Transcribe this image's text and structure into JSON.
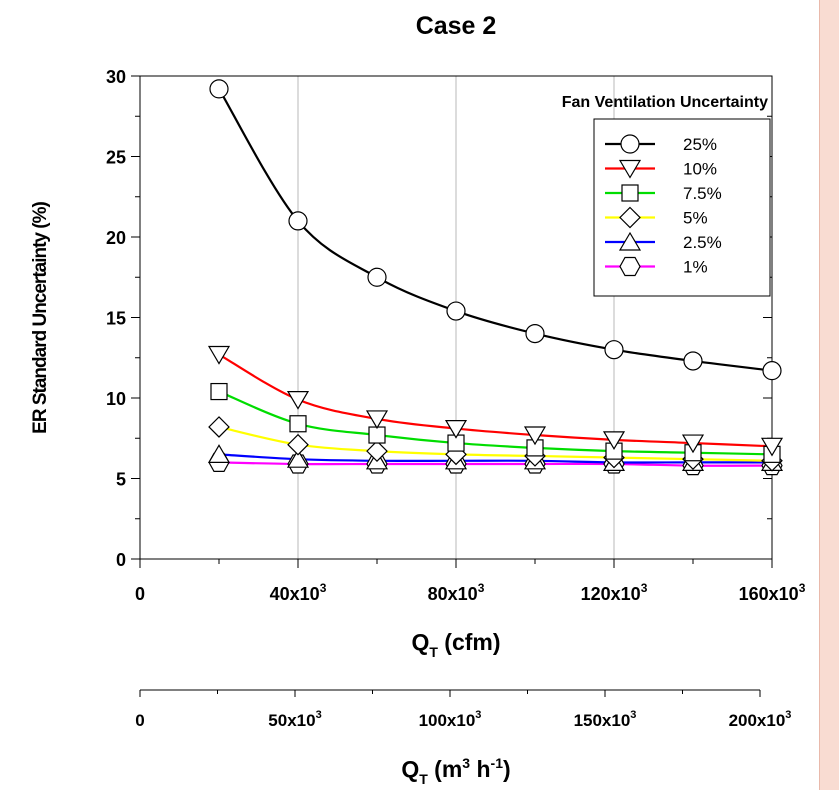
{
  "chart_data": {
    "type": "line",
    "title": "Case 2",
    "xlabel": "Q",
    "xlabel_sub": "T",
    "xlabel_unit": " (cfm)",
    "ylabel": "ER Standard Uncertainty (%)",
    "xlim": [
      0,
      160000
    ],
    "ylim": [
      0,
      30
    ],
    "grid": true,
    "x_ticks": [
      {
        "value": 0,
        "base": "0",
        "exp": ""
      },
      {
        "value": 40000,
        "base": "40x10",
        "exp": "3"
      },
      {
        "value": 80000,
        "base": "80x10",
        "exp": "3"
      },
      {
        "value": 120000,
        "base": "120x10",
        "exp": "3"
      },
      {
        "value": 160000,
        "base": "160x10",
        "exp": "3"
      }
    ],
    "y_ticks": [
      {
        "value": 0,
        "label": "0"
      },
      {
        "value": 5,
        "label": "5"
      },
      {
        "value": 10,
        "label": "10"
      },
      {
        "value": 15,
        "label": "15"
      },
      {
        "value": 20,
        "label": "20"
      },
      {
        "value": 25,
        "label": "25"
      },
      {
        "value": 30,
        "label": "30"
      }
    ],
    "legend_title": "Fan Ventilation Uncertainty",
    "legend_position": "top-right",
    "x": [
      20000,
      40000,
      60000,
      80000,
      100000,
      120000,
      140000,
      160000
    ],
    "series": [
      {
        "name": "25%",
        "color": "#000000",
        "marker": "circle",
        "values": [
          29.2,
          21.0,
          17.5,
          15.4,
          14.0,
          13.0,
          12.3,
          11.7
        ]
      },
      {
        "name": "10%",
        "color": "#ff0000",
        "marker": "triangle-down",
        "values": [
          12.7,
          9.9,
          8.7,
          8.1,
          7.7,
          7.4,
          7.2,
          7.0
        ]
      },
      {
        "name": "7.5%",
        "color": "#00dd00",
        "marker": "square",
        "values": [
          10.4,
          8.4,
          7.7,
          7.2,
          6.9,
          6.7,
          6.6,
          6.5
        ]
      },
      {
        "name": "5%",
        "color": "#ffff00",
        "marker": "diamond",
        "values": [
          8.2,
          7.1,
          6.7,
          6.5,
          6.4,
          6.3,
          6.2,
          6.1
        ]
      },
      {
        "name": "2.5%",
        "color": "#0000ff",
        "marker": "triangle-up",
        "values": [
          6.5,
          6.2,
          6.1,
          6.1,
          6.1,
          6.0,
          6.0,
          6.0
        ]
      },
      {
        "name": "1%",
        "color": "#ff00ff",
        "marker": "hexagon",
        "values": [
          6.0,
          5.9,
          5.9,
          5.9,
          5.9,
          5.9,
          5.8,
          5.8
        ]
      }
    ],
    "secondary_axis": {
      "label": "Q",
      "label_sub": "T",
      "label_unit_pre": " (m",
      "label_unit_exp1": "3",
      "label_unit_mid": " h",
      "label_unit_exp2": "-1",
      "label_unit_post": ")",
      "xlim": [
        0,
        200000
      ],
      "ticks": [
        {
          "value": 0,
          "base": "0",
          "exp": ""
        },
        {
          "value": 50000,
          "base": "50x10",
          "exp": "3"
        },
        {
          "value": 100000,
          "base": "100x10",
          "exp": "3"
        },
        {
          "value": 150000,
          "base": "150x10",
          "exp": "3"
        },
        {
          "value": 200000,
          "base": "200x10",
          "exp": "3"
        }
      ]
    }
  }
}
